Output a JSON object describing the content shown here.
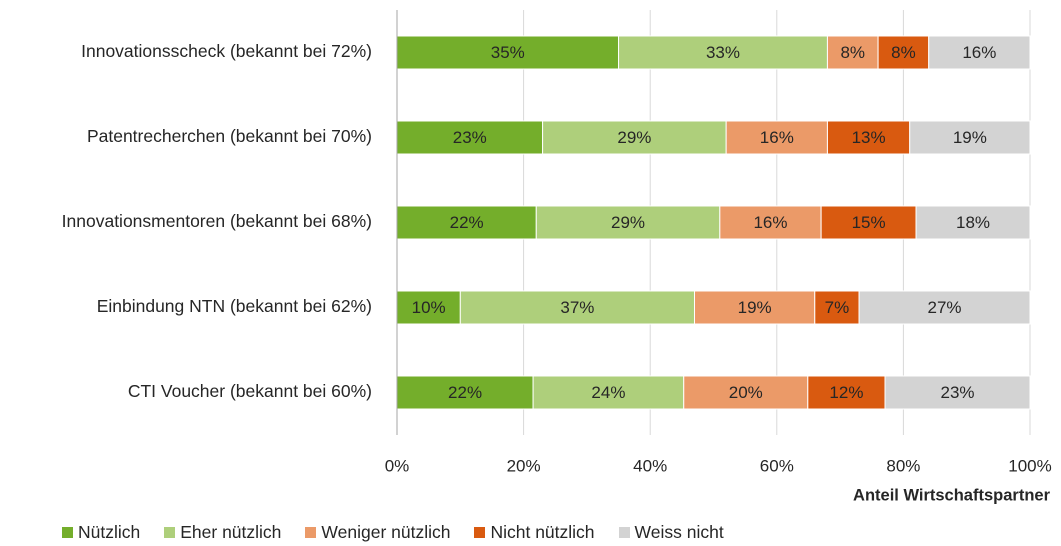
{
  "chart_data": {
    "type": "stacked_bar_horizontal",
    "categories": [
      "Innovationsscheck (bekannt bei 72%)",
      "Patentrecherchen (bekannt bei 70%)",
      "Innovationsmentoren (bekannt bei 68%)",
      "Einbindung NTN (bekannt bei 62%)",
      "CTI Voucher (bekannt bei 60%)"
    ],
    "series": [
      {
        "name": "Nützlich",
        "color": "#74ae2b",
        "values": [
          35,
          23,
          22,
          10,
          21.5
        ],
        "value_labels": [
          "35%",
          "23%",
          "22%",
          "10%",
          "22%"
        ]
      },
      {
        "name": "Eher nützlich",
        "color": "#aecf7b",
        "values": [
          33,
          29,
          29,
          37,
          23.8
        ],
        "value_labels": [
          "33%",
          "29%",
          "29%",
          "37%",
          "24%"
        ]
      },
      {
        "name": "Weniger nützlich",
        "color": "#eb9a68",
        "values": [
          8,
          16,
          16,
          19,
          19.6
        ],
        "value_labels": [
          "8%",
          "16%",
          "16%",
          "19%",
          "20%"
        ]
      },
      {
        "name": "Nicht nützlich",
        "color": "#d95a10",
        "values": [
          8,
          13,
          15,
          7,
          12.2
        ],
        "value_labels": [
          "8%",
          "13%",
          "15%",
          "7%",
          "12%"
        ]
      },
      {
        "name": "Weiss nicht",
        "color": "#d3d3d3",
        "values": [
          16,
          19,
          18,
          27,
          22.9
        ],
        "value_labels": [
          "16%",
          "19%",
          "18%",
          "27%",
          "23%"
        ]
      }
    ],
    "xlabel": "Anteil Wirtschaftspartner",
    "xlim": [
      0,
      100
    ],
    "xticks": [
      {
        "value": 0,
        "label": "0%"
      },
      {
        "value": 20,
        "label": "20%"
      },
      {
        "value": 40,
        "label": "40%"
      },
      {
        "value": 60,
        "label": "60%"
      },
      {
        "value": 80,
        "label": "80%"
      },
      {
        "value": 100,
        "label": "100%"
      }
    ],
    "grid": true,
    "legend": "bottom"
  }
}
